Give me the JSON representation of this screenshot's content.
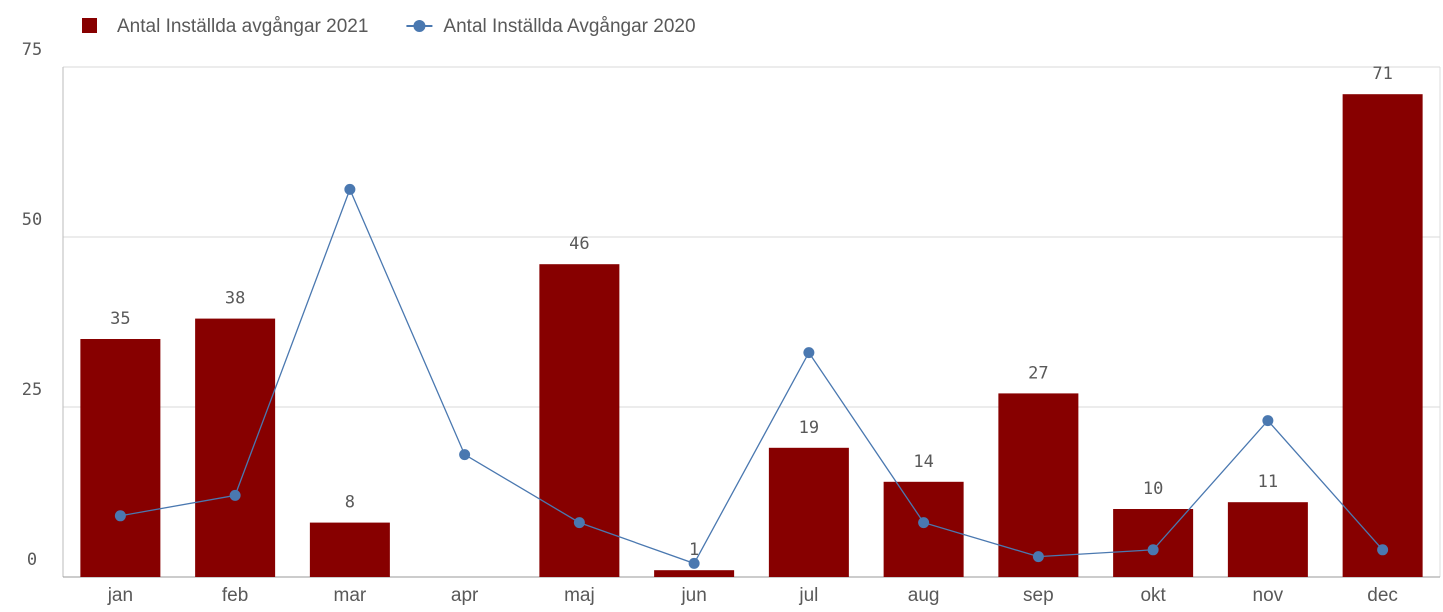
{
  "chart_data": {
    "type": "bar-line",
    "categories": [
      "jan",
      "feb",
      "mar",
      "apr",
      "maj",
      "jun",
      "jul",
      "aug",
      "sep",
      "okt",
      "nov",
      "dec"
    ],
    "series": [
      {
        "name": "Antal Inställda avgångar 2021",
        "type": "bar",
        "color": "#870000",
        "values": [
          35,
          38,
          8,
          null,
          46,
          1,
          19,
          14,
          27,
          10,
          11,
          71
        ]
      },
      {
        "name": "Antal Inställda Avgångar 2020",
        "type": "line",
        "color": "#4a78b0",
        "values": [
          9,
          12,
          57,
          18,
          8,
          2,
          33,
          8,
          3,
          4,
          23,
          4
        ]
      }
    ],
    "ylim": [
      0,
      75
    ],
    "yticks": [
      0,
      25,
      50,
      75
    ],
    "grid": true
  }
}
